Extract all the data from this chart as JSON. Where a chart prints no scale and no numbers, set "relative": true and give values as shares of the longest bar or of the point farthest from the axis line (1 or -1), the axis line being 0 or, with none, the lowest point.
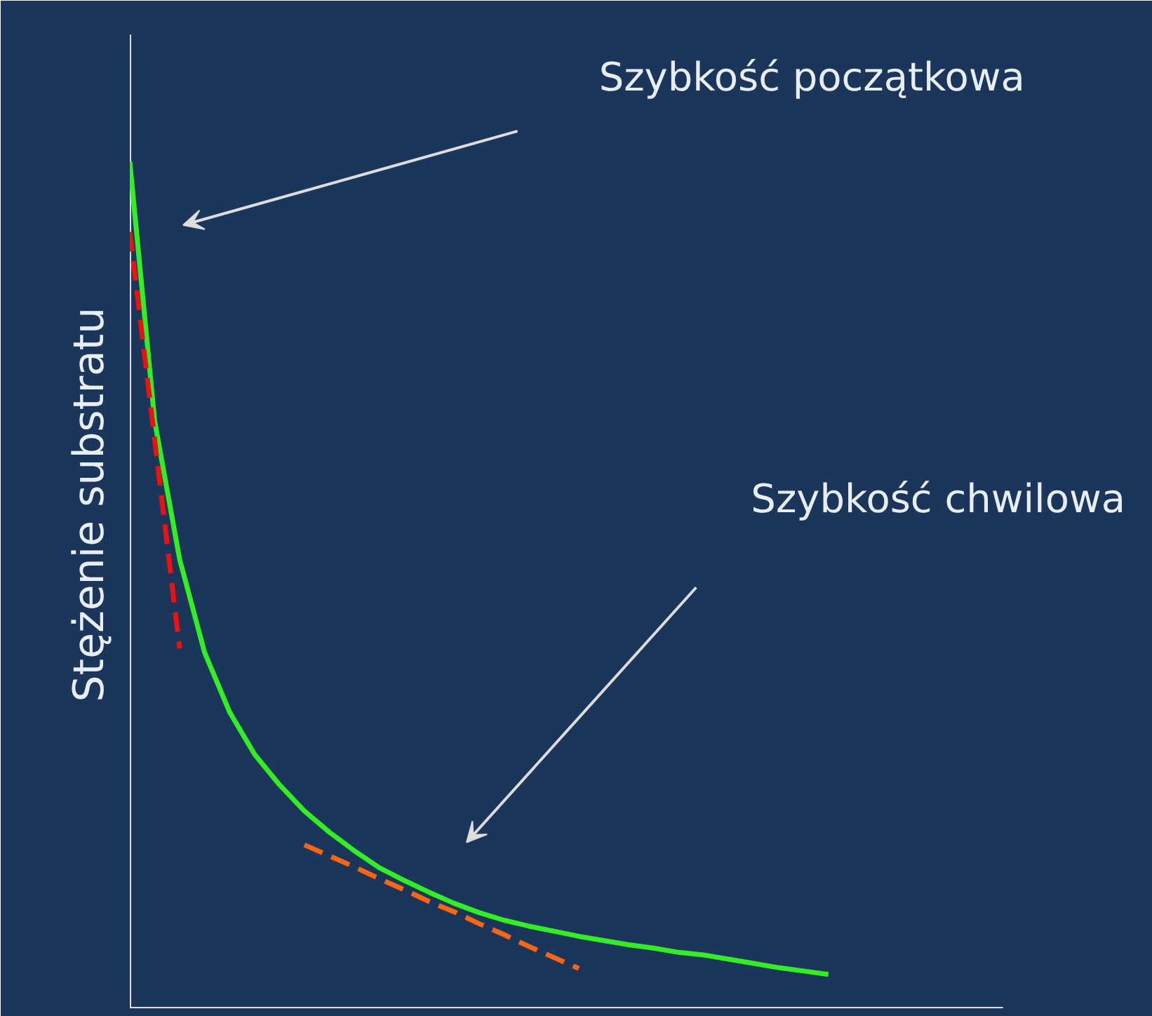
{
  "chart_data": {
    "type": "line",
    "relative": true,
    "ylabel": "Stężenie substratu",
    "categories": [
      null,
      null,
      null,
      null,
      null,
      null,
      null,
      null,
      null,
      null,
      null,
      null,
      null,
      null,
      null,
      null,
      null,
      null,
      null,
      null,
      null,
      null,
      null,
      null,
      null,
      null,
      null,
      null,
      null
    ],
    "series": [
      {
        "color": "#33ee22",
        "line_style": "solid",
        "values": [
          1.0,
          0.693,
          0.53,
          0.42,
          0.35,
          0.3,
          0.264,
          0.233,
          0.208,
          0.186,
          0.166,
          0.151,
          0.137,
          0.124,
          0.113,
          0.104,
          0.097,
          0.091,
          0.085,
          0.08,
          0.075,
          0.071,
          0.066,
          0.063,
          0.058,
          0.053,
          0.048,
          0.044,
          0.04
        ]
      },
      {
        "color": "#ee1111",
        "line_style": "dashed",
        "values": [
          0.917,
          0.671,
          0.425,
          null,
          null,
          null,
          null,
          null,
          null,
          null,
          null,
          null,
          null,
          null,
          null,
          null,
          null,
          null,
          null,
          null,
          null,
          null,
          null,
          null,
          null,
          null,
          null,
          null,
          null
        ]
      },
      {
        "color": "#ff6611",
        "line_style": "dashed",
        "values": [
          null,
          null,
          null,
          null,
          null,
          null,
          null,
          0.193,
          0.18,
          0.167,
          0.153,
          0.14,
          0.126,
          0.114,
          0.1,
          0.087,
          0.073,
          0.06,
          0.047,
          null,
          null,
          null,
          null,
          null,
          null,
          null,
          null,
          null,
          null
        ]
      }
    ],
    "annotations": [
      "Szybkość początkowa",
      "Szybkość chwilowa"
    ]
  }
}
